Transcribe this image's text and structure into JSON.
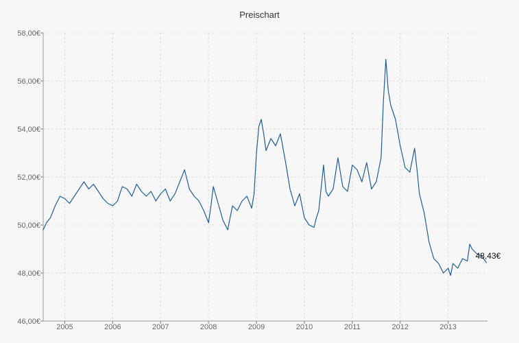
{
  "chart_data": {
    "type": "line",
    "title": "Preischart",
    "xlabel": "",
    "ylabel": "",
    "grid": true,
    "legend": "none",
    "xlim": [
      2004.55,
      2013.82
    ],
    "ylim": [
      46,
      58
    ],
    "x_ticks": [
      {
        "value": 2005,
        "label": "2005"
      },
      {
        "value": 2006,
        "label": "2006"
      },
      {
        "value": 2007,
        "label": "2007"
      },
      {
        "value": 2008,
        "label": "2008"
      },
      {
        "value": 2009,
        "label": "2009"
      },
      {
        "value": 2010,
        "label": "2010"
      },
      {
        "value": 2011,
        "label": "2011"
      },
      {
        "value": 2012,
        "label": "2012"
      },
      {
        "value": 2013,
        "label": "2013"
      }
    ],
    "y_ticks": [
      {
        "value": 46,
        "label": "46,00€"
      },
      {
        "value": 48,
        "label": "48,00€"
      },
      {
        "value": 50,
        "label": "50,00€"
      },
      {
        "value": 52,
        "label": "52,00€"
      },
      {
        "value": 54,
        "label": "54,00€"
      },
      {
        "value": 56,
        "label": "56,00€"
      },
      {
        "value": 58,
        "label": "58,00€"
      }
    ],
    "line_color": "#1f5c99",
    "last_value_label": "48,43€",
    "series": [
      {
        "x": [
          2004.55,
          2004.62,
          2004.7,
          2004.8,
          2004.9,
          2005.0,
          2005.1,
          2005.2,
          2005.3,
          2005.4,
          2005.5,
          2005.6,
          2005.7,
          2005.8,
          2005.9,
          2006.0,
          2006.1,
          2006.2,
          2006.3,
          2006.4,
          2006.5,
          2006.6,
          2006.7,
          2006.8,
          2006.9,
          2007.0,
          2007.1,
          2007.2,
          2007.3,
          2007.4,
          2007.5,
          2007.6,
          2007.7,
          2007.8,
          2007.9,
          2008.0,
          2008.05,
          2008.1,
          2008.2,
          2008.3,
          2008.4,
          2008.45,
          2008.5,
          2008.6,
          2008.7,
          2008.8,
          2008.9,
          2008.95,
          2009.0,
          2009.05,
          2009.1,
          2009.15,
          2009.2,
          2009.3,
          2009.4,
          2009.5,
          2009.6,
          2009.7,
          2009.8,
          2009.9,
          2010.0,
          2010.1,
          2010.2,
          2010.25,
          2010.3,
          2010.4,
          2010.45,
          2010.5,
          2010.6,
          2010.7,
          2010.8,
          2010.9,
          2011.0,
          2011.1,
          2011.2,
          2011.3,
          2011.4,
          2011.5,
          2011.6,
          2011.65,
          2011.7,
          2011.75,
          2011.8,
          2011.9,
          2012.0,
          2012.1,
          2012.2,
          2012.3,
          2012.35,
          2012.4,
          2012.5,
          2012.6,
          2012.7,
          2012.8,
          2012.9,
          2013.0,
          2013.05,
          2013.1,
          2013.2,
          2013.3,
          2013.4,
          2013.45,
          2013.5,
          2013.6,
          2013.7,
          2013.8
        ],
        "y": [
          49.8,
          50.1,
          50.3,
          50.8,
          51.2,
          51.1,
          50.9,
          51.2,
          51.5,
          51.8,
          51.5,
          51.7,
          51.4,
          51.1,
          50.9,
          50.8,
          51.0,
          51.6,
          51.5,
          51.2,
          51.7,
          51.4,
          51.2,
          51.4,
          51.0,
          51.3,
          51.5,
          51.0,
          51.3,
          51.8,
          52.3,
          51.5,
          51.2,
          51.0,
          50.6,
          50.1,
          50.8,
          51.6,
          50.9,
          50.2,
          49.8,
          50.3,
          50.8,
          50.6,
          51.0,
          51.2,
          50.7,
          51.3,
          53.0,
          54.1,
          54.4,
          53.8,
          53.1,
          53.6,
          53.3,
          53.8,
          52.7,
          51.5,
          50.8,
          51.3,
          50.3,
          50.0,
          49.9,
          50.3,
          50.6,
          52.5,
          51.4,
          51.2,
          51.5,
          52.8,
          51.6,
          51.4,
          52.5,
          52.3,
          51.8,
          52.6,
          51.5,
          51.8,
          52.8,
          55.2,
          56.9,
          55.6,
          55.0,
          54.4,
          53.3,
          52.4,
          52.2,
          53.2,
          52.3,
          51.3,
          50.5,
          49.3,
          48.6,
          48.4,
          48.0,
          48.2,
          47.9,
          48.4,
          48.2,
          48.6,
          48.5,
          49.2,
          49.0,
          48.8,
          48.7,
          48.43
        ]
      }
    ]
  }
}
